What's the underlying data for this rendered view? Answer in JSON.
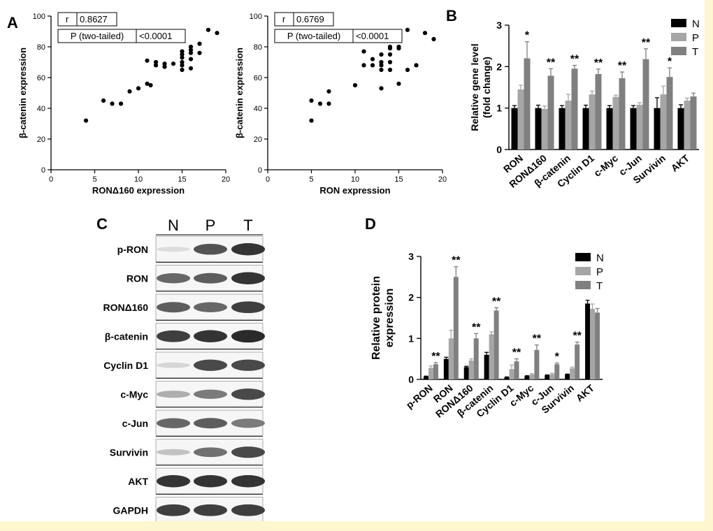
{
  "panels": {
    "A": "A",
    "B": "B",
    "C": "C",
    "D": "D"
  },
  "chart_data": [
    {
      "id": "A1",
      "type": "scatter",
      "xlabel": "RONΔ160 expression",
      "ylabel": "β-catenin expression",
      "xlim": [
        0,
        20
      ],
      "ylim": [
        0,
        100
      ],
      "xticks": [
        "0",
        "5",
        "10",
        "15",
        "20"
      ],
      "yticks": [
        "0",
        "20",
        "40",
        "60",
        "80",
        "100"
      ],
      "stats": {
        "r_label": "r",
        "r_value": "0.8627",
        "p_label": "P (two-tailed)",
        "p_value": "<0.0001"
      },
      "points": [
        [
          4,
          32
        ],
        [
          6,
          45
        ],
        [
          7,
          43
        ],
        [
          8,
          43
        ],
        [
          9,
          51
        ],
        [
          10,
          53
        ],
        [
          11,
          56
        ],
        [
          11.4,
          55
        ],
        [
          11,
          71
        ],
        [
          12,
          68
        ],
        [
          13,
          67
        ],
        [
          13,
          69
        ],
        [
          14,
          69
        ],
        [
          15,
          65
        ],
        [
          15,
          68
        ],
        [
          15,
          70
        ],
        [
          15,
          73
        ],
        [
          15,
          75
        ],
        [
          15,
          77
        ],
        [
          16,
          66
        ],
        [
          16,
          72
        ],
        [
          16,
          76
        ],
        [
          16,
          78
        ],
        [
          16,
          80
        ],
        [
          17,
          76
        ],
        [
          17,
          82
        ],
        [
          18,
          91
        ],
        [
          19,
          89
        ],
        [
          12,
          70
        ]
      ]
    },
    {
      "id": "A2",
      "type": "scatter",
      "xlabel": "RON expression",
      "ylabel": "β-catenin expression",
      "xlim": [
        0,
        20
      ],
      "ylim": [
        0,
        100
      ],
      "xticks": [
        "0",
        "5",
        "10",
        "15",
        "20"
      ],
      "yticks": [
        "0",
        "20",
        "40",
        "60",
        "80",
        "100"
      ],
      "stats": {
        "r_label": "r",
        "r_value": "0.6769",
        "p_label": "P (two-tailed)",
        "p_value": "<0.0001"
      },
      "points": [
        [
          5,
          32
        ],
        [
          5,
          45
        ],
        [
          6,
          43
        ],
        [
          7,
          43
        ],
        [
          7,
          51
        ],
        [
          10,
          55
        ],
        [
          11,
          68
        ],
        [
          11,
          77
        ],
        [
          12,
          68
        ],
        [
          12,
          72
        ],
        [
          13,
          53
        ],
        [
          13,
          65
        ],
        [
          13,
          68
        ],
        [
          13,
          70
        ],
        [
          13,
          75
        ],
        [
          14,
          65
        ],
        [
          14,
          70
        ],
        [
          14,
          75
        ],
        [
          14,
          79
        ],
        [
          14,
          80
        ],
        [
          15,
          56
        ],
        [
          15,
          79
        ],
        [
          16,
          65
        ],
        [
          16,
          91
        ],
        [
          17,
          68
        ],
        [
          18,
          89
        ],
        [
          19,
          85
        ],
        [
          15,
          80
        ]
      ]
    },
    {
      "id": "B",
      "type": "bar",
      "ylabel": "Relative gene level\n(fold change)",
      "ylim": [
        0,
        3
      ],
      "yticks": [
        "0",
        "1",
        "2",
        "3"
      ],
      "categories": [
        "RON",
        "RONΔ160",
        "β-catenin",
        "Cyclin D1",
        "c-Myc",
        "c-Jun",
        "Survivin",
        "AKT"
      ],
      "series": [
        {
          "name": "N",
          "color": "#000000",
          "values": [
            1.0,
            1.0,
            1.0,
            1.0,
            1.0,
            1.0,
            1.0,
            1.0
          ],
          "errors": [
            0.06,
            0.07,
            0.06,
            0.07,
            0.06,
            0.06,
            0.25,
            0.08
          ]
        },
        {
          "name": "P",
          "color": "#a6a6a6",
          "values": [
            1.45,
            0.98,
            1.18,
            1.33,
            1.27,
            1.08,
            1.33,
            1.18
          ],
          "errors": [
            0.1,
            0.07,
            0.15,
            0.08,
            0.04,
            0.05,
            0.2,
            0.06
          ]
        },
        {
          "name": "T",
          "color": "#808080",
          "values": [
            2.2,
            1.78,
            1.95,
            1.82,
            1.72,
            2.18,
            1.75,
            1.28
          ],
          "errors": [
            0.4,
            0.17,
            0.08,
            0.12,
            0.15,
            0.25,
            0.22,
            0.08
          ]
        }
      ],
      "significance": [
        "*",
        "**",
        "**",
        "**",
        "**",
        "**",
        "*",
        ""
      ]
    },
    {
      "id": "D",
      "type": "bar",
      "ylabel": "Relative protein\nexpression",
      "ylim": [
        0,
        3
      ],
      "yticks": [
        "0",
        "1",
        "2",
        "3"
      ],
      "categories": [
        "p-RON",
        "RON",
        "RONΔ160",
        "β-catenin",
        "Cyclin D1",
        "c-Myc",
        "c-Jun",
        "Survivin",
        "AKT"
      ],
      "series": [
        {
          "name": "N",
          "color": "#000000",
          "values": [
            0.07,
            0.5,
            0.3,
            0.6,
            0.05,
            0.08,
            0.1,
            0.12,
            1.85
          ],
          "errors": [
            0.01,
            0.04,
            0.02,
            0.06,
            0.01,
            0.01,
            0.01,
            0.01,
            0.08
          ]
        },
        {
          "name": "P",
          "color": "#a6a6a6",
          "values": [
            0.28,
            1.0,
            0.46,
            1.1,
            0.25,
            0.12,
            0.13,
            0.27,
            1.72
          ],
          "errors": [
            0.05,
            0.2,
            0.04,
            0.06,
            0.1,
            0.02,
            0.02,
            0.03,
            0.12
          ]
        },
        {
          "name": "T",
          "color": "#808080",
          "values": [
            0.37,
            2.5,
            1.0,
            1.68,
            0.44,
            0.72,
            0.37,
            0.85,
            1.63
          ],
          "errors": [
            0.04,
            0.25,
            0.12,
            0.07,
            0.06,
            0.12,
            0.03,
            0.06,
            0.1
          ]
        }
      ],
      "significance": [
        "**",
        "**",
        "**",
        "**",
        "**",
        "**",
        "*",
        "**",
        ""
      ]
    }
  ],
  "blot": {
    "lanes": [
      "N",
      "P",
      "T"
    ],
    "rows": [
      {
        "label": "p-RON",
        "levels": [
          0.12,
          0.8,
          0.95
        ]
      },
      {
        "label": "RON",
        "levels": [
          0.7,
          0.75,
          0.95
        ]
      },
      {
        "label": "RONΔ160",
        "levels": [
          0.75,
          0.7,
          0.9
        ]
      },
      {
        "label": "β-catenin",
        "levels": [
          0.9,
          0.95,
          1.0
        ]
      },
      {
        "label": "Cyclin D1",
        "levels": [
          0.15,
          0.85,
          0.85
        ]
      },
      {
        "label": "c-Myc",
        "levels": [
          0.35,
          0.6,
          0.85
        ]
      },
      {
        "label": "c-Jun",
        "levels": [
          0.7,
          0.75,
          0.6
        ]
      },
      {
        "label": "Survivin",
        "levels": [
          0.25,
          0.65,
          0.85
        ]
      },
      {
        "label": "AKT",
        "levels": [
          0.95,
          0.95,
          0.95
        ]
      },
      {
        "label": "GAPDH",
        "levels": [
          0.9,
          0.9,
          0.9
        ]
      }
    ]
  }
}
